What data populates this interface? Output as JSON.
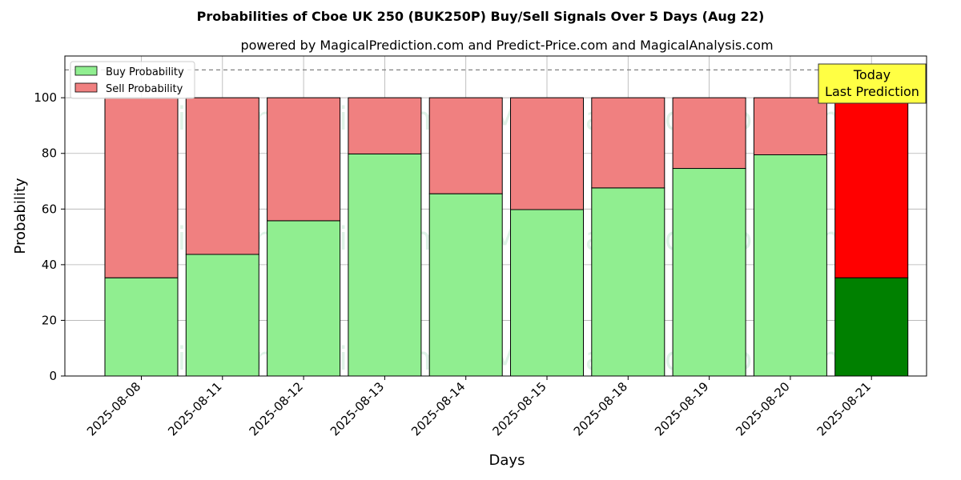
{
  "chart_data": {
    "type": "bar",
    "stacked": true,
    "title": "Probabilities of Cboe UK 250 (BUK250P) Buy/Sell Signals Over 5 Days (Aug 22)",
    "subtitle": "powered by MagicalPrediction.com and Predict-Price.com and MagicalAnalysis.com",
    "xlabel": "Days",
    "ylabel": "Probability",
    "ylim": [
      0,
      115
    ],
    "yticks": [
      0,
      20,
      40,
      60,
      80,
      100
    ],
    "reference_line": 110,
    "grid": true,
    "legend_position": "top-left",
    "categories": [
      "2025-08-08",
      "2025-08-11",
      "2025-08-12",
      "2025-08-13",
      "2025-08-14",
      "2025-08-15",
      "2025-08-18",
      "2025-08-19",
      "2025-08-20",
      "2025-08-21"
    ],
    "series": [
      {
        "name": "Buy Probability",
        "color": "#90ee90",
        "highlight_color": "#008000",
        "values": [
          35.3,
          43.7,
          55.8,
          79.8,
          65.5,
          59.8,
          67.6,
          74.6,
          79.5,
          35.3
        ]
      },
      {
        "name": "Sell Probability",
        "color": "#f08080",
        "highlight_color": "#ff0000",
        "values": [
          64.7,
          56.3,
          44.2,
          20.2,
          34.5,
          40.2,
          32.4,
          25.4,
          20.5,
          64.7
        ]
      }
    ],
    "highlight_index": 9,
    "annotation": {
      "lines": [
        "Today",
        "Last Prediction"
      ],
      "background": "#ffff44"
    },
    "watermarks": [
      "MagicalAnalysis.com",
      "MagicalPrediction.com"
    ]
  }
}
